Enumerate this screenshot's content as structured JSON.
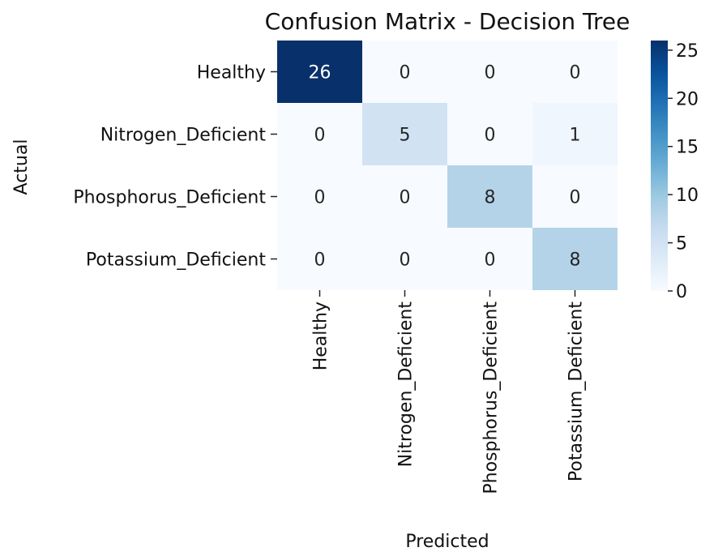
{
  "chart_data": {
    "type": "heatmap",
    "title": "Confusion Matrix - Decision Tree",
    "xlabel": "Predicted",
    "ylabel": "Actual",
    "x_categories": [
      "Healthy",
      "Nitrogen_Deficient",
      "Phosphorus_Deficient",
      "Potassium_Deficient"
    ],
    "y_categories": [
      "Healthy",
      "Nitrogen_Deficient",
      "Phosphorus_Deficient",
      "Potassium_Deficient"
    ],
    "values": [
      [
        26,
        0,
        0,
        0
      ],
      [
        0,
        5,
        0,
        1
      ],
      [
        0,
        0,
        8,
        0
      ],
      [
        0,
        0,
        0,
        8
      ]
    ],
    "colormap": "Blues",
    "vmin": 0,
    "vmax": 26,
    "colorbar_ticks": [
      0,
      5,
      10,
      15,
      20,
      25
    ],
    "annotations": true
  }
}
